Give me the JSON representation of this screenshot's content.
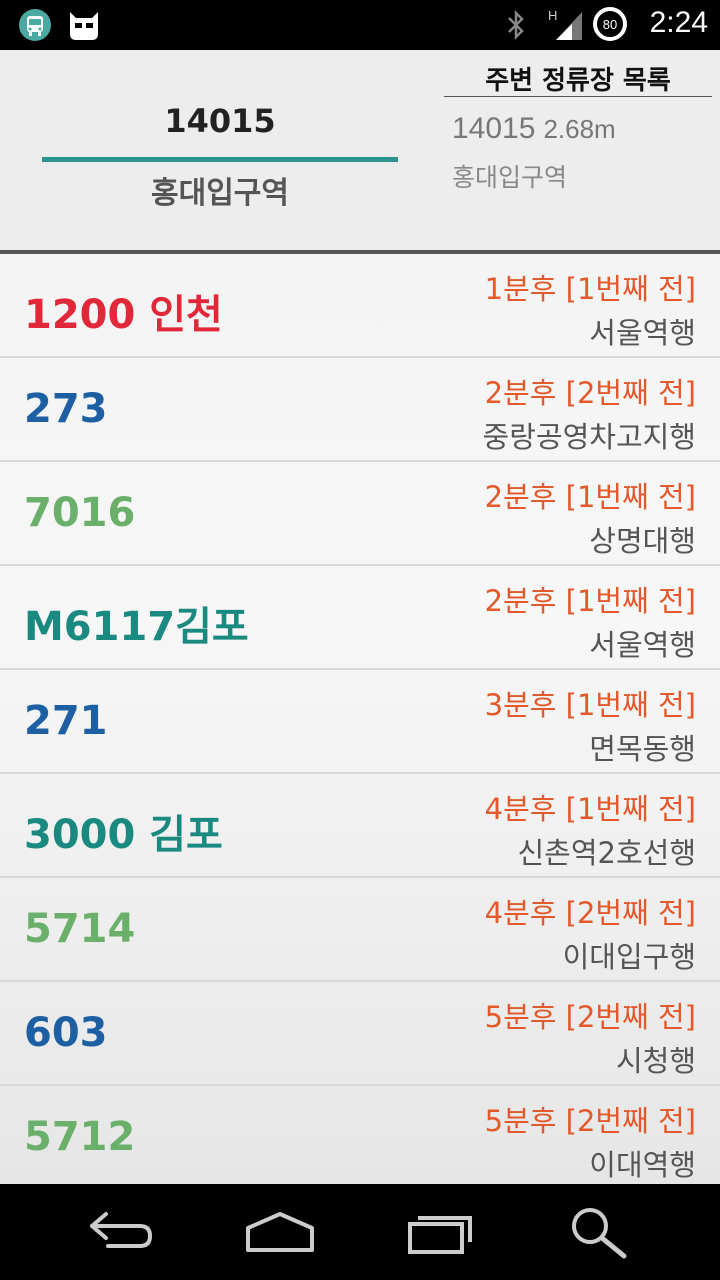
{
  "status_bar": {
    "time": "2:24",
    "battery_level": "80",
    "network_type": "H",
    "icons": [
      "bus-app-icon",
      "cyanogen-mascot-icon",
      "bluetooth-icon",
      "signal-icon",
      "battery-icon"
    ]
  },
  "header": {
    "stop_number": "14015",
    "stop_name": "홍대입구역",
    "nearby": {
      "title": "주변 정류장 목록",
      "items": [
        {
          "number": "14015",
          "distance": "2.68m",
          "name": "홍대입구역"
        }
      ]
    },
    "accent_color": "#2a958e"
  },
  "arrivals": [
    {
      "route": "1200 인천",
      "color": "#e0283a",
      "arrival": "1분후 [1번째 전]",
      "destination": "서울역행"
    },
    {
      "route": "273",
      "color": "#1d5fa3",
      "arrival": "2분후 [2번째 전]",
      "destination": "중랑공영차고지행"
    },
    {
      "route": "7016",
      "color": "#6ab06a",
      "arrival": "2분후 [1번째 전]",
      "destination": "상명대행"
    },
    {
      "route": "M6117김포",
      "color": "#1a8a80",
      "arrival": "2분후 [1번째 전]",
      "destination": "서울역행"
    },
    {
      "route": "271",
      "color": "#1d5fa3",
      "arrival": "3분후 [1번째 전]",
      "destination": "면목동행"
    },
    {
      "route": "3000 김포",
      "color": "#1a8a80",
      "arrival": "4분후 [1번째 전]",
      "destination": "신촌역2호선행"
    },
    {
      "route": "5714",
      "color": "#6ab06a",
      "arrival": "4분후 [2번째 전]",
      "destination": "이대입구행"
    },
    {
      "route": "603",
      "color": "#1d5fa3",
      "arrival": "5분후 [2번째 전]",
      "destination": "시청행"
    },
    {
      "route": "5712",
      "color": "#6ab06a",
      "arrival": "5분후 [2번째 전]",
      "destination": "이대역행"
    }
  ],
  "nav_bar": {
    "buttons": [
      "back-icon",
      "home-icon",
      "recents-icon",
      "search-icon"
    ]
  }
}
